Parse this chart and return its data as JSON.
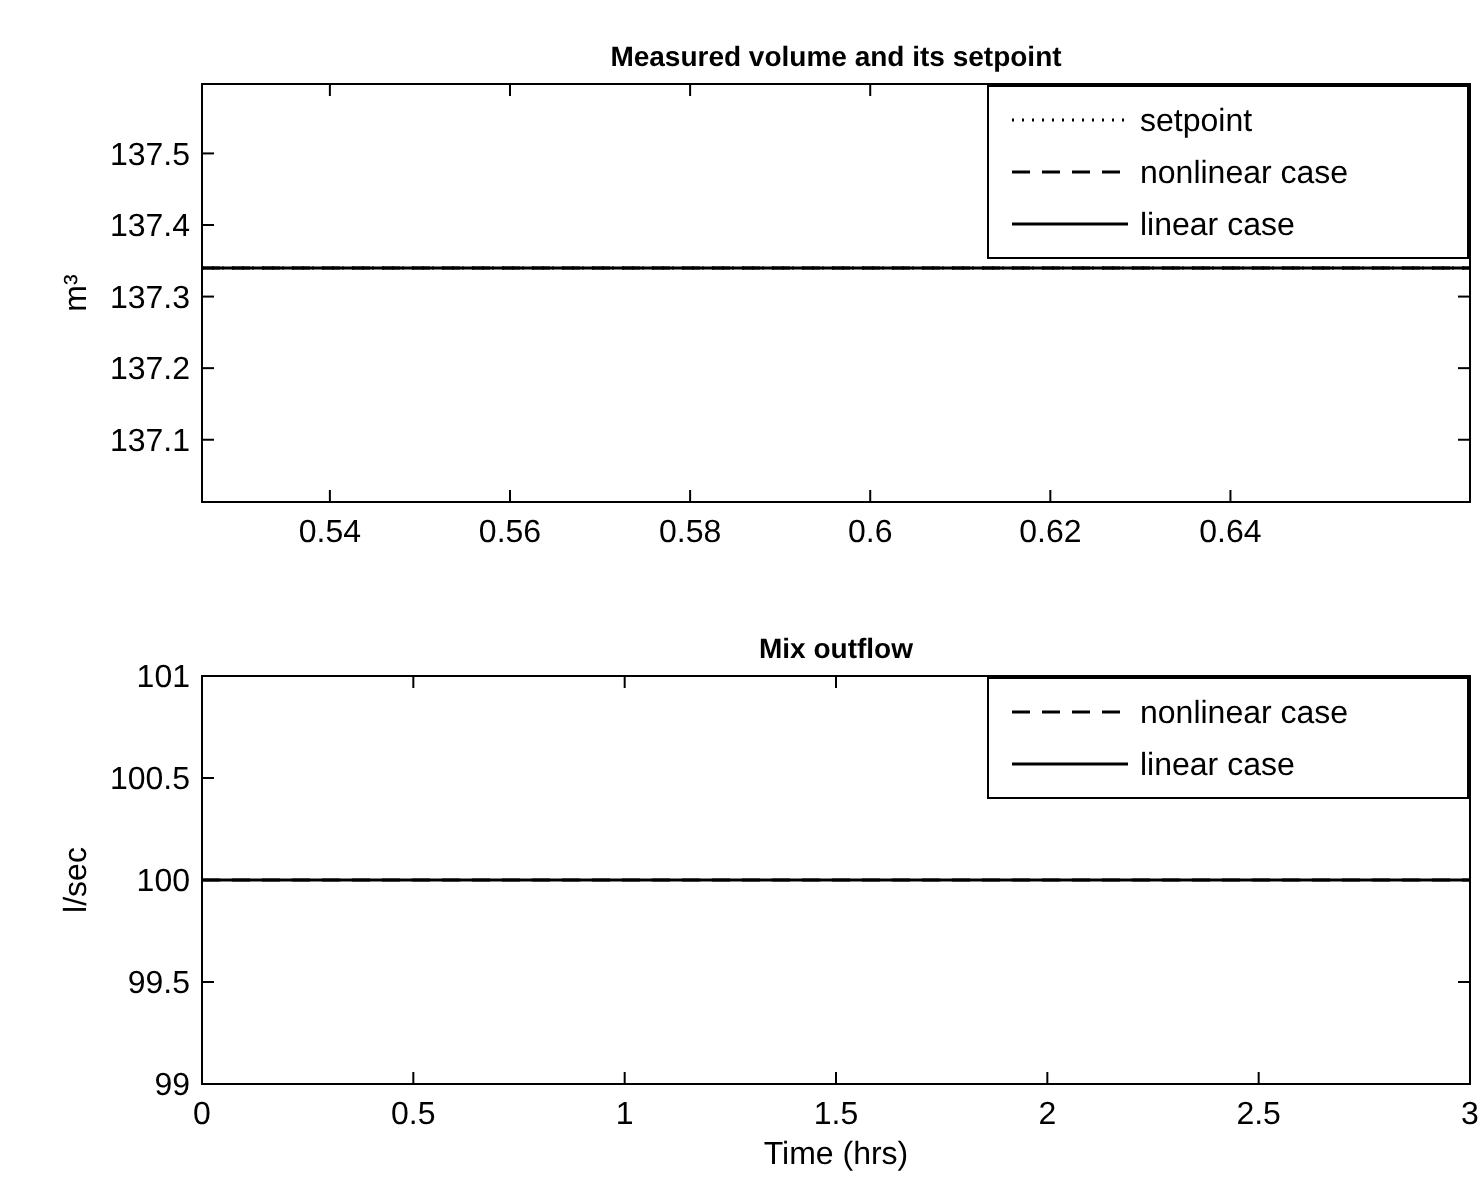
{
  "chart_data": [
    {
      "type": "line",
      "title": "Measured volume and its setpoint",
      "ylabel": "m³",
      "x": [
        0.5258,
        0.6666
      ],
      "xlim": [
        0.5258,
        0.6666
      ],
      "xticks": [
        0.54,
        0.56,
        0.58,
        0.6,
        0.62,
        0.64
      ],
      "ylim": [
        137.013,
        137.597
      ],
      "yticks": [
        137.1,
        137.2,
        137.3,
        137.4,
        137.5
      ],
      "legend": "top right",
      "series": [
        {
          "name": "setpoint",
          "color": "#000000",
          "line_style": "dotted",
          "values": [
            137.34,
            137.34
          ]
        },
        {
          "name": "nonlinear case",
          "color": "#000000",
          "line_style": "dashed",
          "values": [
            137.34,
            137.34
          ]
        },
        {
          "name": "linear case",
          "color": "#000000",
          "line_style": "solid",
          "values": [
            137.34,
            137.34
          ]
        }
      ]
    },
    {
      "type": "line",
      "title": "Mix outflow",
      "xlabel": "Time (hrs)",
      "ylabel": "l/sec",
      "x": [
        0,
        3
      ],
      "xlim": [
        0,
        3
      ],
      "xticks": [
        0,
        0.5,
        1,
        1.5,
        2,
        2.5,
        3
      ],
      "ylim": [
        99,
        101
      ],
      "yticks": [
        99,
        99.5,
        100,
        100.5,
        101
      ],
      "legend": "top right",
      "series": [
        {
          "name": "nonlinear case",
          "color": "#000000",
          "line_style": "dashed",
          "values": [
            100,
            100
          ]
        },
        {
          "name": "linear case",
          "color": "#000000",
          "line_style": "solid",
          "values": [
            100,
            100
          ]
        }
      ]
    }
  ]
}
